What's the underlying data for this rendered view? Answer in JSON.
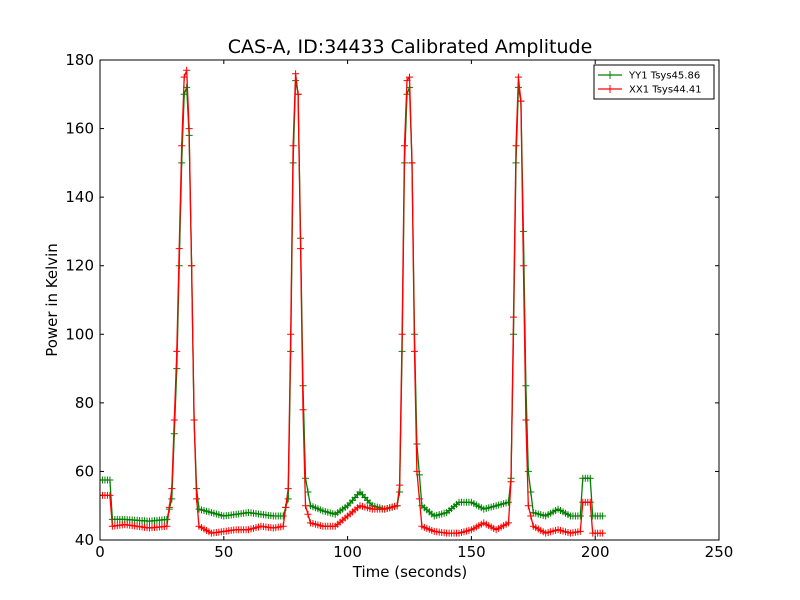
{
  "chart_data": {
    "type": "line",
    "title": "CAS-A, ID:34433 Calibrated Amplitude",
    "xlabel": "Time (seconds)",
    "ylabel": "Power in Kelvin",
    "xlim": [
      0,
      250
    ],
    "ylim": [
      40,
      180
    ],
    "xticks": [
      "0",
      "50",
      "100",
      "150",
      "200",
      "250"
    ],
    "yticks": [
      "40",
      "60",
      "80",
      "100",
      "120",
      "140",
      "160",
      "180"
    ],
    "grid": false,
    "legend_position": "top-right",
    "marker": "+",
    "series": [
      {
        "name": "YY1 Tsys45.86",
        "color": "#008000",
        "points": [
          [
            0,
            57.5
          ],
          [
            4,
            57.5
          ],
          [
            5,
            46
          ],
          [
            10,
            46
          ],
          [
            20,
            45.5
          ],
          [
            27,
            46
          ],
          [
            29,
            52
          ],
          [
            31,
            90
          ],
          [
            33,
            150
          ],
          [
            34,
            170
          ],
          [
            35,
            172
          ],
          [
            36,
            158
          ],
          [
            37,
            120
          ],
          [
            38,
            75
          ],
          [
            39,
            55
          ],
          [
            40,
            49
          ],
          [
            45,
            48
          ],
          [
            50,
            47
          ],
          [
            55,
            47.5
          ],
          [
            60,
            48
          ],
          [
            65,
            47.5
          ],
          [
            70,
            47
          ],
          [
            74,
            47
          ],
          [
            76,
            52
          ],
          [
            77,
            95
          ],
          [
            78,
            150
          ],
          [
            79,
            174
          ],
          [
            80,
            170
          ],
          [
            81,
            128
          ],
          [
            82,
            85
          ],
          [
            83,
            58
          ],
          [
            85,
            50
          ],
          [
            90,
            48.5
          ],
          [
            95,
            47.5
          ],
          [
            100,
            50
          ],
          [
            105,
            54
          ],
          [
            110,
            50
          ],
          [
            115,
            49
          ],
          [
            120,
            50
          ],
          [
            121,
            54
          ],
          [
            122,
            95
          ],
          [
            123,
            150
          ],
          [
            124,
            170
          ],
          [
            125,
            172
          ],
          [
            126,
            150
          ],
          [
            127,
            100
          ],
          [
            128,
            68
          ],
          [
            130,
            50
          ],
          [
            135,
            47
          ],
          [
            140,
            48
          ],
          [
            145,
            51
          ],
          [
            150,
            51
          ],
          [
            155,
            49
          ],
          [
            160,
            50
          ],
          [
            165,
            51
          ],
          [
            166,
            58
          ],
          [
            167,
            100
          ],
          [
            168,
            150
          ],
          [
            169,
            172
          ],
          [
            170,
            168
          ],
          [
            171,
            130
          ],
          [
            172,
            85
          ],
          [
            173,
            60
          ],
          [
            175,
            48
          ],
          [
            180,
            47
          ],
          [
            185,
            49
          ],
          [
            190,
            47
          ],
          [
            194,
            47
          ],
          [
            195,
            58
          ],
          [
            198,
            58
          ],
          [
            199,
            47
          ],
          [
            203,
            47
          ]
        ]
      },
      {
        "name": "XX1 Tsys44.41",
        "color": "#ff0000",
        "points": [
          [
            0,
            53
          ],
          [
            4,
            53
          ],
          [
            5,
            44
          ],
          [
            10,
            44.5
          ],
          [
            20,
            43.5
          ],
          [
            27,
            44
          ],
          [
            29,
            55
          ],
          [
            31,
            95
          ],
          [
            33,
            155
          ],
          [
            34,
            175
          ],
          [
            35,
            177
          ],
          [
            36,
            160
          ],
          [
            37,
            120
          ],
          [
            38,
            75
          ],
          [
            39,
            52
          ],
          [
            40,
            44
          ],
          [
            45,
            42
          ],
          [
            50,
            42.5
          ],
          [
            55,
            43
          ],
          [
            60,
            43
          ],
          [
            65,
            44
          ],
          [
            70,
            43.5
          ],
          [
            74,
            44
          ],
          [
            76,
            55
          ],
          [
            77,
            100
          ],
          [
            78,
            155
          ],
          [
            79,
            176
          ],
          [
            80,
            170
          ],
          [
            81,
            125
          ],
          [
            82,
            78
          ],
          [
            83,
            50
          ],
          [
            85,
            45
          ],
          [
            90,
            44
          ],
          [
            95,
            44
          ],
          [
            100,
            47
          ],
          [
            105,
            50
          ],
          [
            110,
            49
          ],
          [
            115,
            49
          ],
          [
            120,
            50
          ],
          [
            121,
            56
          ],
          [
            122,
            100
          ],
          [
            123,
            155
          ],
          [
            124,
            174
          ],
          [
            125,
            175
          ],
          [
            126,
            150
          ],
          [
            127,
            95
          ],
          [
            128,
            60
          ],
          [
            130,
            44
          ],
          [
            135,
            42.5
          ],
          [
            140,
            42
          ],
          [
            145,
            42
          ],
          [
            150,
            43
          ],
          [
            155,
            45
          ],
          [
            160,
            43
          ],
          [
            165,
            45
          ],
          [
            166,
            57
          ],
          [
            167,
            105
          ],
          [
            168,
            155
          ],
          [
            169,
            175
          ],
          [
            170,
            168
          ],
          [
            171,
            120
          ],
          [
            172,
            75
          ],
          [
            173,
            50
          ],
          [
            175,
            44
          ],
          [
            180,
            42
          ],
          [
            185,
            43
          ],
          [
            190,
            42
          ],
          [
            194,
            42.5
          ],
          [
            195,
            51
          ],
          [
            198,
            51
          ],
          [
            199,
            42
          ],
          [
            203,
            42
          ]
        ]
      }
    ]
  }
}
